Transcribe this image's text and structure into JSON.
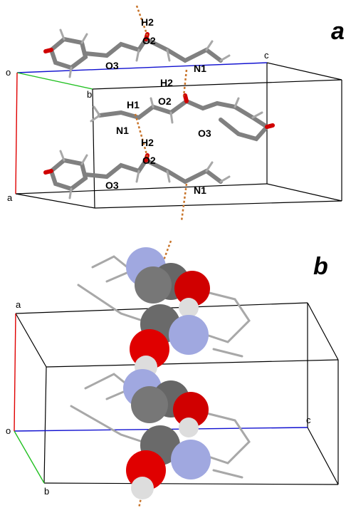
{
  "panels": [
    {
      "label": "a",
      "axes": {
        "origin": "o",
        "a": "a",
        "b": "b",
        "c": "c"
      },
      "atom_labels": [
        "H2",
        "O2",
        "O3",
        "N1",
        "H2",
        "H1",
        "O2",
        "N1",
        "O3",
        "H2",
        "O2",
        "O3",
        "N1"
      ]
    },
    {
      "label": "b",
      "axes": {
        "origin": "o",
        "a": "a",
        "b": "b",
        "c": "c"
      }
    }
  ]
}
